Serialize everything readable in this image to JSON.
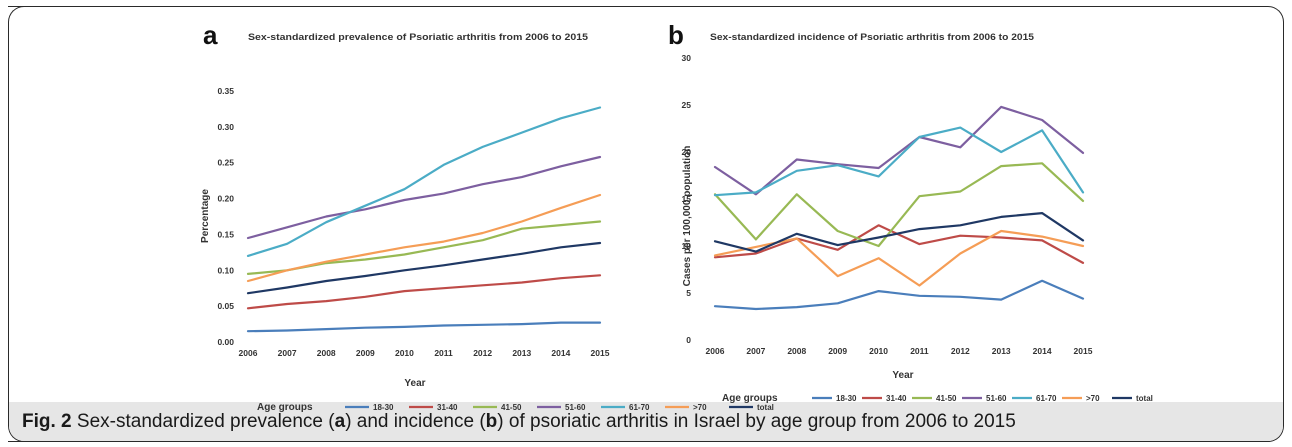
{
  "caption": {
    "fig_label": "Fig. 2",
    "parts": [
      " Sex-standardized prevalence (",
      "a",
      ") and incidence (",
      "b",
      ") of psoriatic arthritis in Israel by age group from 2006 to 2015"
    ]
  },
  "colors": {
    "18-30": "#4a7ebb",
    "31-40": "#be4b48",
    "41-50": "#98b954",
    ">70": "#f59d56",
    "51-60": "#7d5fa0",
    "61-70": "#4bacc6",
    "total": "#1f3864"
  },
  "chart_data": [
    {
      "panel_label": "a",
      "type": "line",
      "title": "Sex-standardized prevalence of Psoriatic arthritis from 2006 to 2015",
      "xlabel": "Year",
      "ylabel": "Percentage",
      "x": [
        "2006",
        "2007",
        "2008",
        "2009",
        "2010",
        "2011",
        "2012",
        "2013",
        "2014",
        "2015"
      ],
      "ylim": [
        0,
        0.35
      ],
      "yticks": [
        "0.00",
        "0.05",
        "0.10",
        "0.15",
        "0.20",
        "0.25",
        "0.30",
        "0.35"
      ],
      "ytick_values": [
        0,
        0.05,
        0.1,
        0.15,
        0.2,
        0.25,
        0.3,
        0.35
      ],
      "legend_title": "Age groups",
      "legend_position": "bottom",
      "grid": false,
      "series": [
        {
          "name": "18-30",
          "values": [
            0.015,
            0.016,
            0.018,
            0.02,
            0.021,
            0.023,
            0.024,
            0.025,
            0.027,
            0.027
          ]
        },
        {
          "name": "31-40",
          "values": [
            0.047,
            0.053,
            0.057,
            0.063,
            0.071,
            0.075,
            0.079,
            0.083,
            0.089,
            0.093
          ]
        },
        {
          "name": "41-50",
          "values": [
            0.095,
            0.1,
            0.11,
            0.115,
            0.122,
            0.132,
            0.142,
            0.158,
            0.163,
            0.168
          ]
        },
        {
          "name": "51-60",
          "values": [
            0.145,
            0.16,
            0.175,
            0.185,
            0.198,
            0.207,
            0.22,
            0.23,
            0.245,
            0.258
          ]
        },
        {
          "name": "61-70",
          "values": [
            0.12,
            0.137,
            0.167,
            0.19,
            0.213,
            0.247,
            0.272,
            0.292,
            0.312,
            0.327
          ]
        },
        {
          "name": ">70",
          "values": [
            0.085,
            0.1,
            0.112,
            0.122,
            0.132,
            0.14,
            0.152,
            0.168,
            0.187,
            0.205
          ]
        },
        {
          "name": "total",
          "values": [
            0.068,
            0.076,
            0.085,
            0.092,
            0.1,
            0.107,
            0.115,
            0.123,
            0.132,
            0.138
          ]
        }
      ]
    },
    {
      "panel_label": "b",
      "type": "line",
      "title": "Sex-standardized incidence of Psoriatic arthritis from 2006 to 2015",
      "xlabel": "Year",
      "ylabel": "Cases per 100,000 population",
      "x": [
        "2006",
        "2007",
        "2008",
        "2009",
        "2010",
        "2011",
        "2012",
        "2013",
        "2014",
        "2015"
      ],
      "ylim": [
        0,
        30
      ],
      "yticks": [
        "0",
        "5",
        "10",
        "15",
        "20",
        "25",
        "30"
      ],
      "ytick_values": [
        0,
        5,
        10,
        15,
        20,
        25,
        30
      ],
      "legend_title": "Age groups",
      "legend_position": "bottom",
      "grid": false,
      "series": [
        {
          "name": "18-30",
          "values": [
            3.6,
            3.3,
            3.5,
            3.9,
            5.2,
            4.7,
            4.6,
            4.3,
            6.3,
            4.4
          ]
        },
        {
          "name": "31-40",
          "values": [
            8.8,
            9.2,
            10.8,
            9.6,
            12.2,
            10.2,
            11.1,
            10.9,
            10.6,
            8.2
          ]
        },
        {
          "name": "41-50",
          "values": [
            15.5,
            10.7,
            15.5,
            11.6,
            10.0,
            15.3,
            15.8,
            18.5,
            18.8,
            14.8
          ]
        },
        {
          "name": "51-60",
          "values": [
            18.4,
            15.5,
            19.2,
            18.7,
            18.3,
            21.6,
            20.5,
            24.8,
            23.4,
            19.9
          ]
        },
        {
          "name": "61-70",
          "values": [
            15.4,
            15.7,
            18.0,
            18.6,
            17.4,
            21.6,
            22.6,
            20.0,
            22.3,
            15.7
          ]
        },
        {
          "name": ">70",
          "values": [
            9.0,
            9.9,
            10.8,
            6.8,
            8.7,
            5.8,
            9.2,
            11.6,
            11.0,
            10.0
          ]
        },
        {
          "name": "total",
          "values": [
            10.5,
            9.4,
            11.3,
            10.1,
            10.9,
            11.8,
            12.2,
            13.1,
            13.5,
            10.6
          ]
        }
      ]
    }
  ]
}
